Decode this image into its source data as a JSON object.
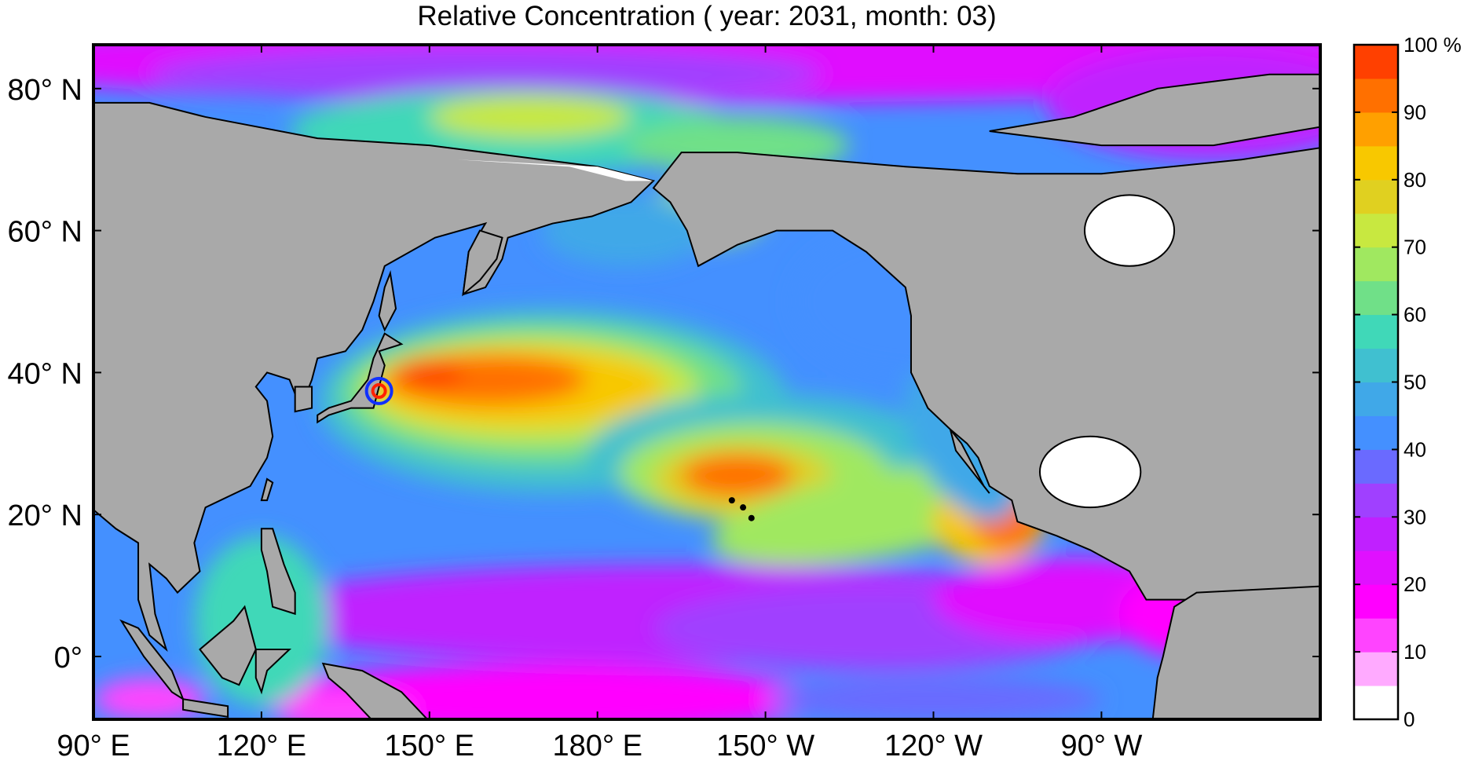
{
  "title": "Relative Concentration ( year: 2031, month: 03)",
  "map": {
    "projection": "equirectangular",
    "lon_range": [
      "90 E",
      "51 W"
    ],
    "lat_range": [
      "9 S",
      "86 N"
    ],
    "land_color": "#a9a9a9",
    "x_ticks": [
      {
        "label": "90° E",
        "lon": 90
      },
      {
        "label": "120° E",
        "lon": 120
      },
      {
        "label": "150° E",
        "lon": 150
      },
      {
        "label": "180° E",
        "lon": 180
      },
      {
        "label": "150° W",
        "lon": 210
      },
      {
        "label": "120° W",
        "lon": 240
      },
      {
        "label": "90° W",
        "lon": 270
      }
    ],
    "y_ticks": [
      {
        "label": "80° N",
        "lat": 80
      },
      {
        "label": "60° N",
        "lat": 60
      },
      {
        "label": "40° N",
        "lat": 40
      },
      {
        "label": "20° N",
        "lat": 20
      },
      {
        "label": "0°",
        "lat": 0
      }
    ],
    "source_marker": {
      "lon": 141,
      "lat": 37.4,
      "ring_color": "#1030ff",
      "center_color": "#ff2000"
    }
  },
  "colorbar": {
    "unit": "%",
    "tick_labels": [
      "100 %",
      "90",
      "80",
      "70",
      "60",
      "50",
      "40",
      "30",
      "20",
      "10",
      "0"
    ],
    "levels": [
      0,
      5,
      10,
      15,
      20,
      25,
      30,
      35,
      40,
      45,
      50,
      55,
      60,
      65,
      70,
      75,
      80,
      85,
      90,
      95,
      100
    ],
    "colors": [
      "#ffffff",
      "#ffaaff",
      "#ff44ff",
      "#ff00ff",
      "#e010ff",
      "#c020ff",
      "#a040ff",
      "#6a6aff",
      "#4490ff",
      "#40a8e8",
      "#40c0d0",
      "#40d8b8",
      "#70e088",
      "#a0e860",
      "#c8e840",
      "#e0d020",
      "#f8c800",
      "#ffa000",
      "#ff7000",
      "#ff4000"
    ]
  }
}
